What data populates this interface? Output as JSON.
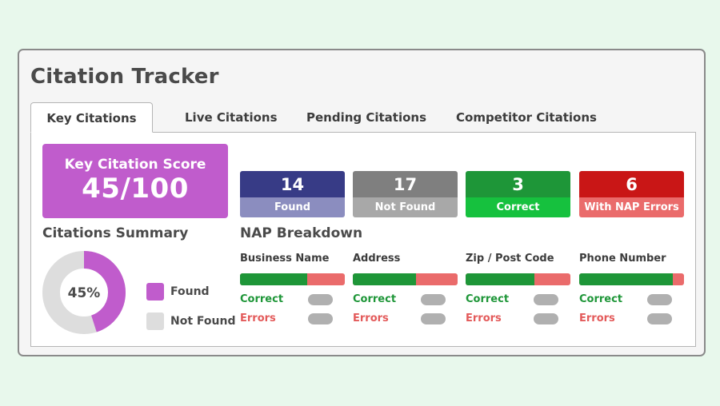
{
  "app": {
    "title": "Citation Tracker"
  },
  "tabs": [
    {
      "label": "Key Citations",
      "active": true
    },
    {
      "label": "Live Citations",
      "active": false
    },
    {
      "label": "Pending Citations",
      "active": false
    },
    {
      "label": "Competitor Citations",
      "active": false
    }
  ],
  "score": {
    "label": "Key Citation Score",
    "value": "45/100",
    "color": "#c05ccc"
  },
  "summary": {
    "title": "Citations Summary",
    "percent_label": "45%",
    "found_fraction": 0.45,
    "found_color": "#c05ccc",
    "notfound_color": "#dddddd",
    "legend": [
      {
        "label": "Found",
        "color": "#c05ccc"
      },
      {
        "label": "Not Found",
        "color": "#dddddd"
      }
    ]
  },
  "stats": [
    {
      "value": "14",
      "label": "Found",
      "top_color": "#373b86",
      "bottom_color": "#8b8dbf"
    },
    {
      "value": "17",
      "label": "Not Found",
      "top_color": "#7f7f7f",
      "bottom_color": "#a8a8a8"
    },
    {
      "value": "3",
      "label": "Correct",
      "top_color": "#1e9638",
      "bottom_color": "#16c13e"
    },
    {
      "value": "6",
      "label": "With NAP Errors",
      "top_color": "#c91616",
      "bottom_color": "#ea6b6b"
    }
  ],
  "nap": {
    "title": "NAP Breakdown",
    "correct_label": "Correct",
    "errors_label": "Errors",
    "correct_color": "#1e9638",
    "error_color": "#ea6b6b",
    "columns": [
      {
        "label": "Business Name",
        "correct_fraction": 0.64
      },
      {
        "label": "Address",
        "correct_fraction": 0.6
      },
      {
        "label": "Zip / Post Code",
        "correct_fraction": 0.66
      },
      {
        "label": "Phone Number",
        "correct_fraction": 0.89
      }
    ]
  }
}
